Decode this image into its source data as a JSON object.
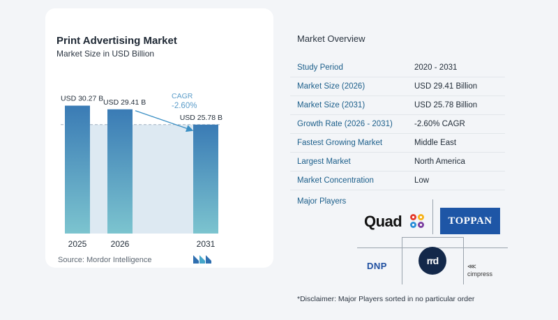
{
  "chart_data": {
    "type": "bar",
    "title": "Print Advertising Market",
    "subtitle": "Market Size in USD Billion",
    "categories": [
      "2025",
      "2026",
      "2031"
    ],
    "values": [
      30.27,
      29.41,
      25.78
    ],
    "value_labels": [
      "USD 30.27 B",
      "USD 29.41 B",
      "USD 25.78 B"
    ],
    "cagr_label": "CAGR",
    "cagr_value": "-2.60%",
    "ylim": [
      0,
      33
    ],
    "grid": false,
    "colors": {
      "bar_top": "#3a7bb5",
      "bar_bottom": "#7cc4cf",
      "band": "#dde9f2",
      "arrow": "#3a8fc4",
      "cagr_text": "#5a9cc9"
    }
  },
  "source": "Source:  Mordor Intelligence",
  "overview": {
    "title": "Market Overview",
    "rows": [
      {
        "key": "Study Period",
        "value": "2020 - 2031"
      },
      {
        "key": "Market Size (2026)",
        "value": "USD 29.41 Billion"
      },
      {
        "key": "Market Size (2031)",
        "value": "USD 25.78 Billion"
      },
      {
        "key": "Growth Rate (2026 - 2031)",
        "value": "-2.60% CAGR"
      },
      {
        "key": "Fastest Growing Market",
        "value": "Middle East"
      },
      {
        "key": "Largest Market",
        "value": "North America"
      },
      {
        "key": "Market Concentration",
        "value": "Low"
      }
    ]
  },
  "players": {
    "title": "Major Players",
    "items": [
      "Quad",
      "TOPPAN",
      "DNP",
      "rrd",
      "cimpress"
    ]
  },
  "disclaimer": "*Disclaimer: Major Players sorted in no particular order"
}
